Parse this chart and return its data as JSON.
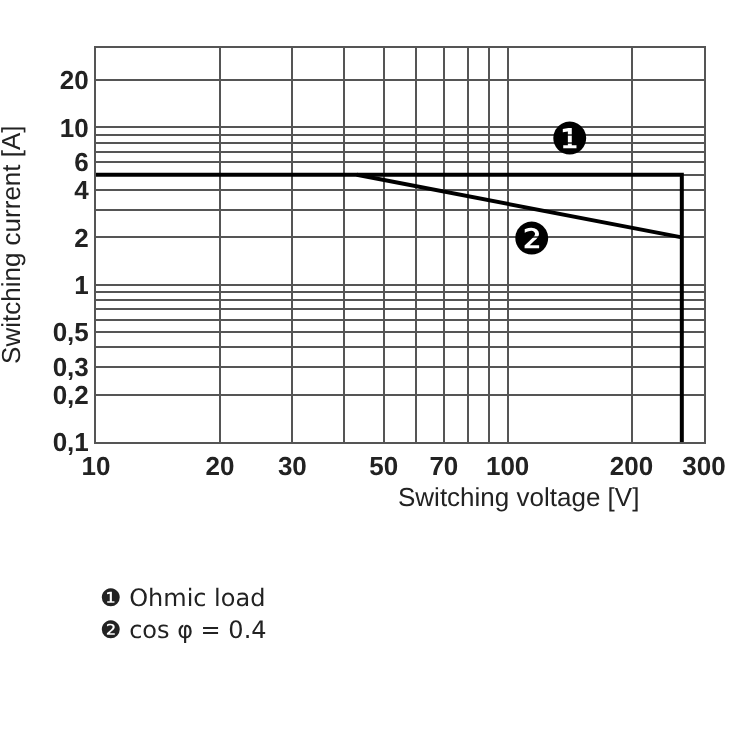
{
  "chart_data": {
    "type": "line",
    "xlabel": "Switching voltage [V]",
    "ylabel": "Switching current [A]",
    "log": "xy",
    "grid": true,
    "xlim": [
      10,
      300
    ],
    "ylim": [
      0.1,
      32
    ],
    "xticks": [
      10,
      20,
      30,
      {
        "value": 40,
        "label": null
      },
      50,
      {
        "value": 60,
        "label": null
      },
      70,
      {
        "value": 80,
        "label": null
      },
      {
        "value": 90,
        "label": null
      },
      100,
      200,
      300
    ],
    "yticks": [
      {
        "value": 0.1,
        "label": "0,1"
      },
      {
        "value": 0.2,
        "label": "0,2"
      },
      {
        "value": 0.3,
        "label": "0,3"
      },
      {
        "value": 0.4,
        "label": null
      },
      {
        "value": 0.5,
        "label": "0,5"
      },
      {
        "value": 0.6,
        "label": null
      },
      {
        "value": 0.7,
        "label": null
      },
      {
        "value": 0.8,
        "label": null
      },
      {
        "value": 0.9,
        "label": null
      },
      1,
      2,
      {
        "value": 3,
        "label": null
      },
      4,
      {
        "value": 5,
        "label": null
      },
      6,
      {
        "value": 7,
        "label": null
      },
      {
        "value": 8,
        "label": null
      },
      {
        "value": 9,
        "label": null
      },
      10,
      20
    ],
    "series": [
      {
        "color": "#000000",
        "x": [
          10,
          265,
          265
        ],
        "values": [
          5,
          5,
          0.1
        ]
      },
      {
        "color": "#000000",
        "x": [
          43,
          265
        ],
        "values": [
          5,
          2
        ]
      }
    ],
    "annotations": [
      "❶",
      "❷",
      "❶ Ohmic load",
      "❷ cos φ = 0.4"
    ]
  }
}
